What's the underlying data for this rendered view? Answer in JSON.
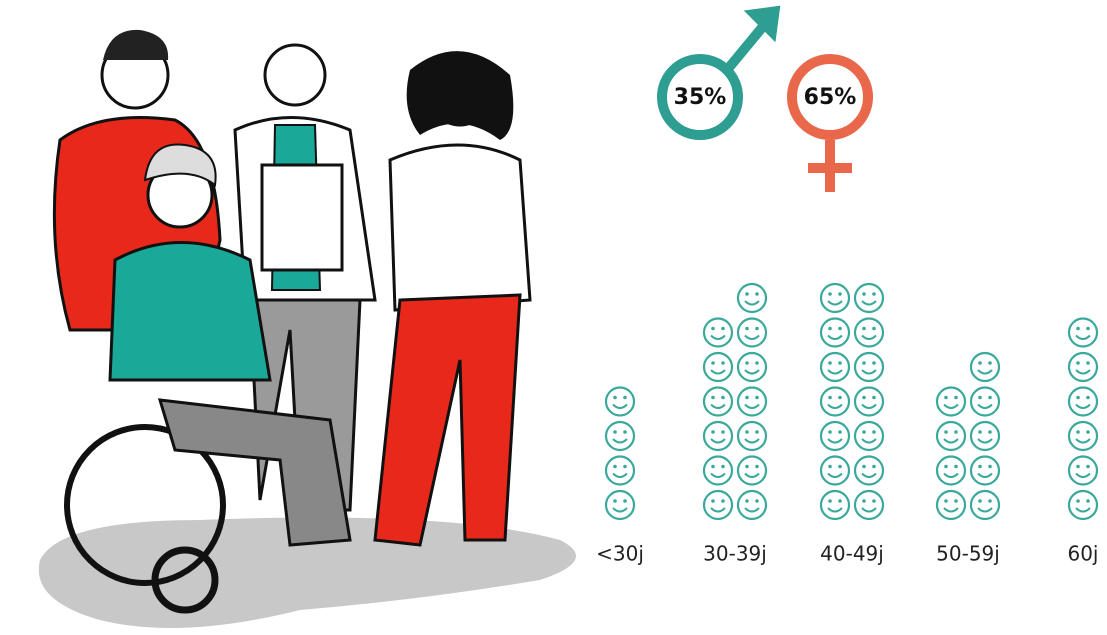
{
  "chart_data": [
    {
      "type": "gender",
      "values": [
        35,
        65
      ],
      "value_labels": [
        "35%",
        "65%"
      ],
      "colors": [
        "#2e9e92",
        "#e9684b"
      ]
    },
    {
      "type": "pictogram",
      "categories": [
        "<30j",
        "30-39j",
        "40-49j",
        "50-59j",
        "60j"
      ],
      "values": [
        4,
        13,
        14,
        9,
        6
      ],
      "color": "#3aa99b"
    }
  ]
}
